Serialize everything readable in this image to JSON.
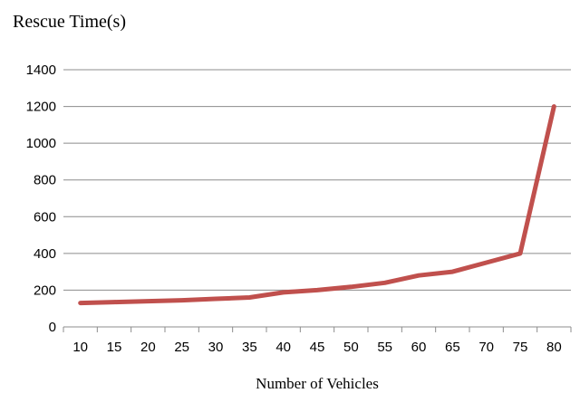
{
  "chart_data": {
    "type": "line",
    "ylabel": "Rescue Time(s)",
    "xlabel": "Number of Vehicles",
    "x": [
      10,
      15,
      20,
      25,
      30,
      35,
      40,
      45,
      50,
      55,
      60,
      65,
      70,
      75,
      80
    ],
    "series": [
      {
        "values": [
          130,
          135,
          140,
          145,
          153,
          160,
          188,
          200,
          218,
          240,
          280,
          300,
          350,
          400,
          1200
        ],
        "color": "#c0504d"
      }
    ],
    "ylim": [
      0,
      1400
    ],
    "yticks": [
      0,
      200,
      400,
      600,
      800,
      1000,
      1200,
      1400
    ],
    "grid": true,
    "legend": "none"
  }
}
